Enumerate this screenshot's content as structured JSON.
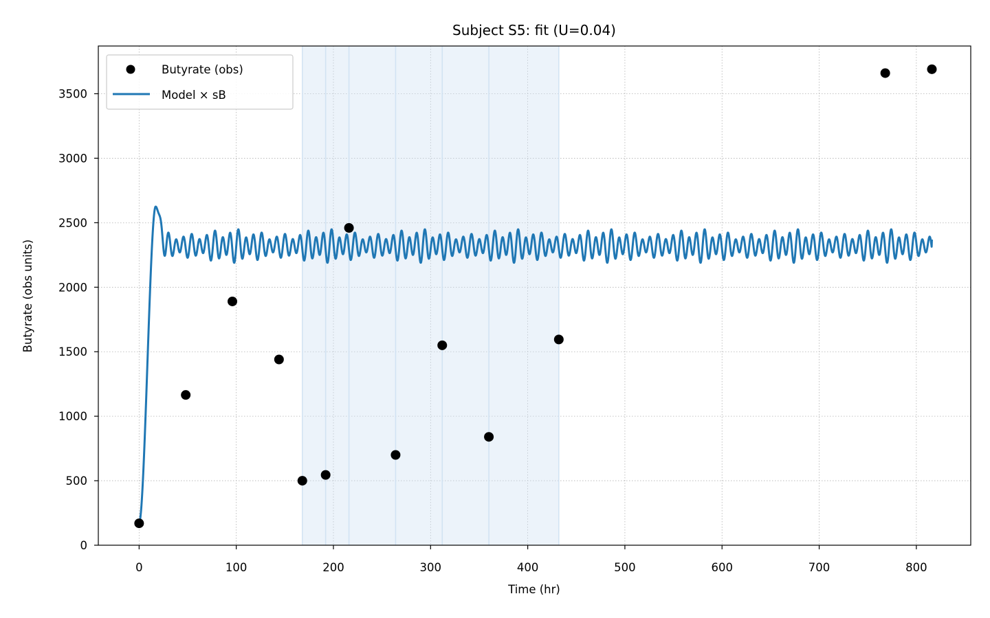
{
  "chart_data": {
    "type": "line",
    "title": "Subject S5: fit (U=0.04)",
    "xlabel": "Time (hr)",
    "ylabel": "Butyrate (obs units)",
    "xlim": [
      -42,
      856
    ],
    "ylim": [
      0,
      3870
    ],
    "xticks": [
      0,
      100,
      200,
      300,
      400,
      500,
      600,
      700,
      800
    ],
    "yticks": [
      0,
      500,
      1000,
      1500,
      2000,
      2500,
      3000,
      3500
    ],
    "grid": true,
    "legend_position": "upper left",
    "shaded_interval": [
      168,
      432
    ],
    "vertical_markers": [
      192,
      216,
      264,
      312,
      360
    ],
    "observations": {
      "name": "Butyrate (obs)",
      "color": "#000000",
      "points": [
        {
          "x": 0,
          "y": 170
        },
        {
          "x": 48,
          "y": 1165
        },
        {
          "x": 96,
          "y": 1890
        },
        {
          "x": 144,
          "y": 1440
        },
        {
          "x": 168,
          "y": 500
        },
        {
          "x": 192,
          "y": 545
        },
        {
          "x": 216,
          "y": 2460
        },
        {
          "x": 264,
          "y": 700
        },
        {
          "x": 312,
          "y": 1550
        },
        {
          "x": 360,
          "y": 840
        },
        {
          "x": 432,
          "y": 1595
        },
        {
          "x": 768,
          "y": 3660
        },
        {
          "x": 816,
          "y": 3690
        }
      ]
    },
    "model": {
      "name": "Model × sB",
      "color": "#1f77b4",
      "start": 175,
      "peak": {
        "x": 17,
        "y": 2625
      },
      "settle_x": 28,
      "baseline": 2320,
      "oscillation_amplitude": 100,
      "oscillation_period_hr": 8,
      "end_x": 816,
      "end_y": 2370
    },
    "shade_color": "#cfe1f2"
  }
}
